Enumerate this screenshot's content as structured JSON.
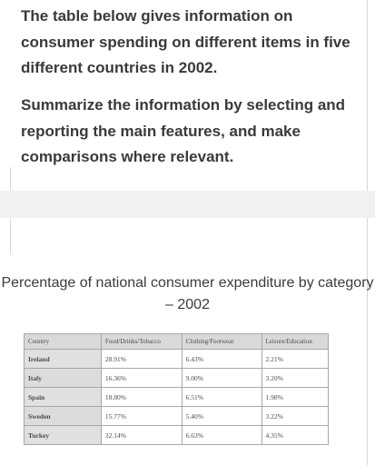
{
  "prompt": {
    "paragraph1": "The table below gives information on consumer spending on different items in five different countries in 2002.",
    "paragraph2": "Summarize the information by selecting and reporting the main features, and make comparisons where relevant."
  },
  "table": {
    "title": "Percentage of national consumer expenditure by category – 2002",
    "headers": [
      "Country",
      "Food/Drinks/Tobacco",
      "Clothing/Footwear",
      "Leisure/Education"
    ],
    "rows": [
      [
        "Ireland",
        "28.91%",
        "6.43%",
        "2.21%"
      ],
      [
        "Italy",
        "16.36%",
        "9.00%",
        "3.20%"
      ],
      [
        "Spain",
        "18.80%",
        "6.51%",
        "1.98%"
      ],
      [
        "Sweden",
        "15.77%",
        "5.40%",
        "3.22%"
      ],
      [
        "Turkey",
        "32.14%",
        "6.63%",
        "4.35%"
      ]
    ]
  }
}
